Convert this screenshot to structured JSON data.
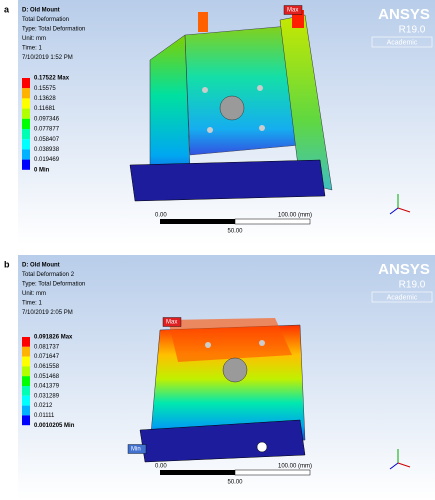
{
  "panels": [
    {
      "label": "a",
      "info": [
        "D: Old Mount",
        "Total Deformation",
        "Type: Total Deformation",
        "Unit: mm",
        "Time: 1",
        "7/10/2019 1:52 PM"
      ],
      "legend": [
        "0.17522 Max",
        "0.15575",
        "0.13628",
        "0.11681",
        "0.097346",
        "0.077877",
        "0.058407",
        "0.038938",
        "0.019469",
        "0 Min"
      ],
      "max_tag": "Max",
      "logo": {
        "name": "ANSYS",
        "release": "R19.0",
        "edition": "Academic"
      },
      "scale": {
        "start": "0.00",
        "end": "100.00 (mm)",
        "mid": "50.00"
      }
    },
    {
      "label": "b",
      "info": [
        "D: Old Mount",
        "Total Deformation 2",
        "Type: Total Deformation",
        "Unit: mm",
        "Time: 1",
        "7/10/2019 2:05 PM"
      ],
      "legend": [
        "0.091826 Max",
        "0.081737",
        "0.071647",
        "0.061558",
        "0.051468",
        "0.041379",
        "0.031289",
        "0.0212",
        "0.01111",
        "0.0010205 Min"
      ],
      "max_tag": "Max",
      "min_tag": "Min",
      "logo": {
        "name": "ANSYS",
        "release": "R19.0",
        "edition": "Academic"
      },
      "scale": {
        "start": "0.00",
        "end": "100.00 (mm)",
        "mid": "50.00"
      }
    }
  ]
}
